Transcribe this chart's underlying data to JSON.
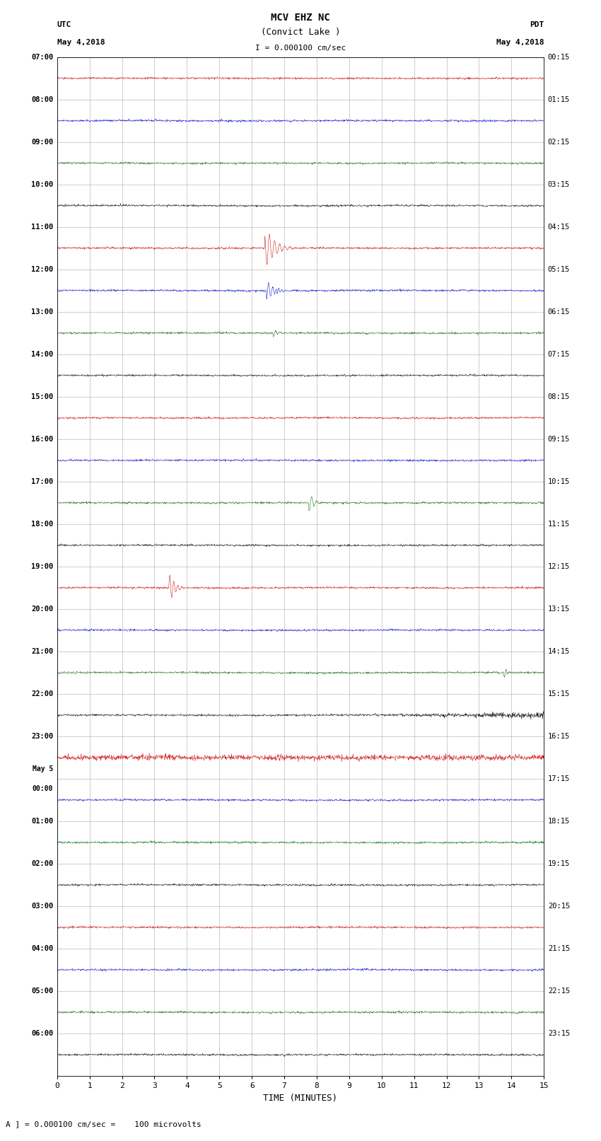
{
  "title_line1": "MCV EHZ NC",
  "title_line2": "(Convict Lake )",
  "title_line3": "I = 0.000100 cm/sec",
  "left_header1": "UTC",
  "left_header2": "May 4,2018",
  "right_header1": "PDT",
  "right_header2": "May 4,2018",
  "footer": "A ] = 0.000100 cm/sec =    100 microvolts",
  "xlabel": "TIME (MINUTES)",
  "x_ticks": [
    0,
    1,
    2,
    3,
    4,
    5,
    6,
    7,
    8,
    9,
    10,
    11,
    12,
    13,
    14,
    15
  ],
  "utc_labels": [
    "07:00",
    "08:00",
    "09:00",
    "10:00",
    "11:00",
    "12:00",
    "13:00",
    "14:00",
    "15:00",
    "16:00",
    "17:00",
    "18:00",
    "19:00",
    "20:00",
    "21:00",
    "22:00",
    "23:00",
    "May 5\n00:00",
    "01:00",
    "02:00",
    "03:00",
    "04:00",
    "05:00",
    "06:00"
  ],
  "pdt_labels": [
    "00:15",
    "01:15",
    "02:15",
    "03:15",
    "04:15",
    "05:15",
    "06:15",
    "07:15",
    "08:15",
    "09:15",
    "10:15",
    "11:15",
    "12:15",
    "13:15",
    "14:15",
    "15:15",
    "16:15",
    "17:15",
    "18:15",
    "19:15",
    "20:15",
    "21:15",
    "22:15",
    "23:15"
  ],
  "n_rows": 24,
  "bg_color": "#ffffff",
  "line_colors_cycle": [
    "#cc0000",
    "#0000cc",
    "#006600",
    "#000000"
  ],
  "grid_color": "#aaaaaa",
  "noise_amplitude": 0.012,
  "x_min": 0,
  "x_max": 15
}
